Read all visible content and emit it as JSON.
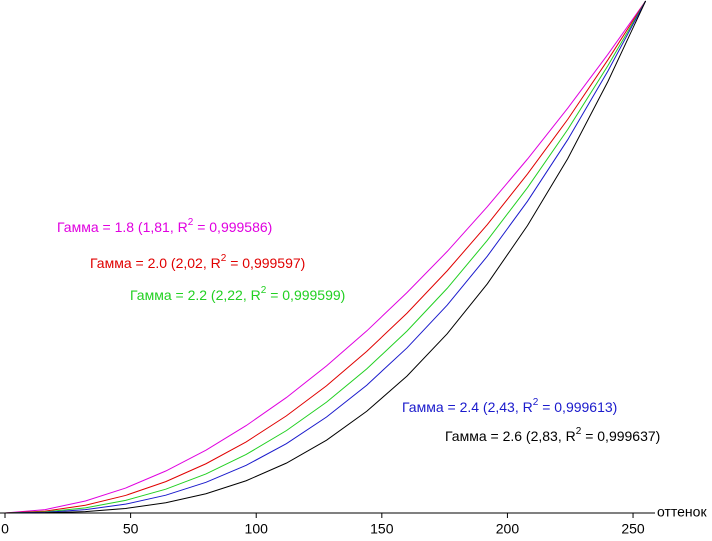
{
  "chart_data": {
    "type": "line",
    "x_label": "оттенок",
    "x": [
      0,
      16,
      32,
      48,
      64,
      80,
      96,
      112,
      128,
      144,
      160,
      176,
      192,
      208,
      224,
      240,
      255
    ],
    "xlim": [
      0,
      255
    ],
    "xticks": [
      0,
      50,
      100,
      150,
      200,
      250
    ],
    "ylim": [
      0,
      1
    ],
    "series": [
      {
        "name": "Гамма = 1.8",
        "color": "#e000e0",
        "values": [
          0,
          0.0067,
          0.0234,
          0.0487,
          0.082,
          0.1227,
          0.1707,
          0.2254,
          0.2874,
          0.3556,
          0.4304,
          0.5107,
          0.5982,
          0.6914,
          0.7906,
          0.8958,
          1
        ]
      },
      {
        "name": "Гамма = 2.0",
        "color": "#e00000",
        "values": [
          0,
          0.0037,
          0.0151,
          0.0343,
          0.0613,
          0.0962,
          0.1389,
          0.1897,
          0.2486,
          0.3157,
          0.3902,
          0.4729,
          0.5633,
          0.6623,
          0.7688,
          0.8851,
          1
        ]
      },
      {
        "name": "Гамма = 2.2",
        "color": "#22d022",
        "values": [
          0,
          0.0021,
          0.01,
          0.0246,
          0.0465,
          0.0763,
          0.1143,
          0.1609,
          0.2165,
          0.2814,
          0.3553,
          0.4387,
          0.5326,
          0.6357,
          0.749,
          0.8737,
          1
        ]
      },
      {
        "name": "Гамма = 2.4",
        "color": "#1a1acc",
        "values": [
          0,
          0.0012,
          0.0065,
          0.0173,
          0.0348,
          0.0599,
          0.0931,
          0.1353,
          0.1875,
          0.2496,
          0.3224,
          0.4058,
          0.5016,
          0.609,
          0.7291,
          0.8633,
          1
        ]
      },
      {
        "name": "Гамма = 2.6",
        "color": "#000000",
        "values": [
          0,
          0.0004,
          0.0028,
          0.0089,
          0.02,
          0.0376,
          0.063,
          0.0974,
          0.1423,
          0.1987,
          0.2674,
          0.3499,
          0.4476,
          0.5615,
          0.6921,
          0.8428,
          1
        ]
      }
    ],
    "annotations": [
      {
        "detail": " (1,81, R",
        "sup": "2",
        "rest": " = 0,999586)"
      },
      {
        "detail": " (2,02, R",
        "sup": "2",
        "rest": " = 0,999597)"
      },
      {
        "detail": " (2,22, R",
        "sup": "2",
        "rest": " = 0,999599)"
      },
      {
        "detail": " (2,43, R",
        "sup": "2",
        "rest": " = 0,999613)"
      },
      {
        "detail": " (2,83, R",
        "sup": "2",
        "rest": " = 0,999637)"
      }
    ]
  }
}
